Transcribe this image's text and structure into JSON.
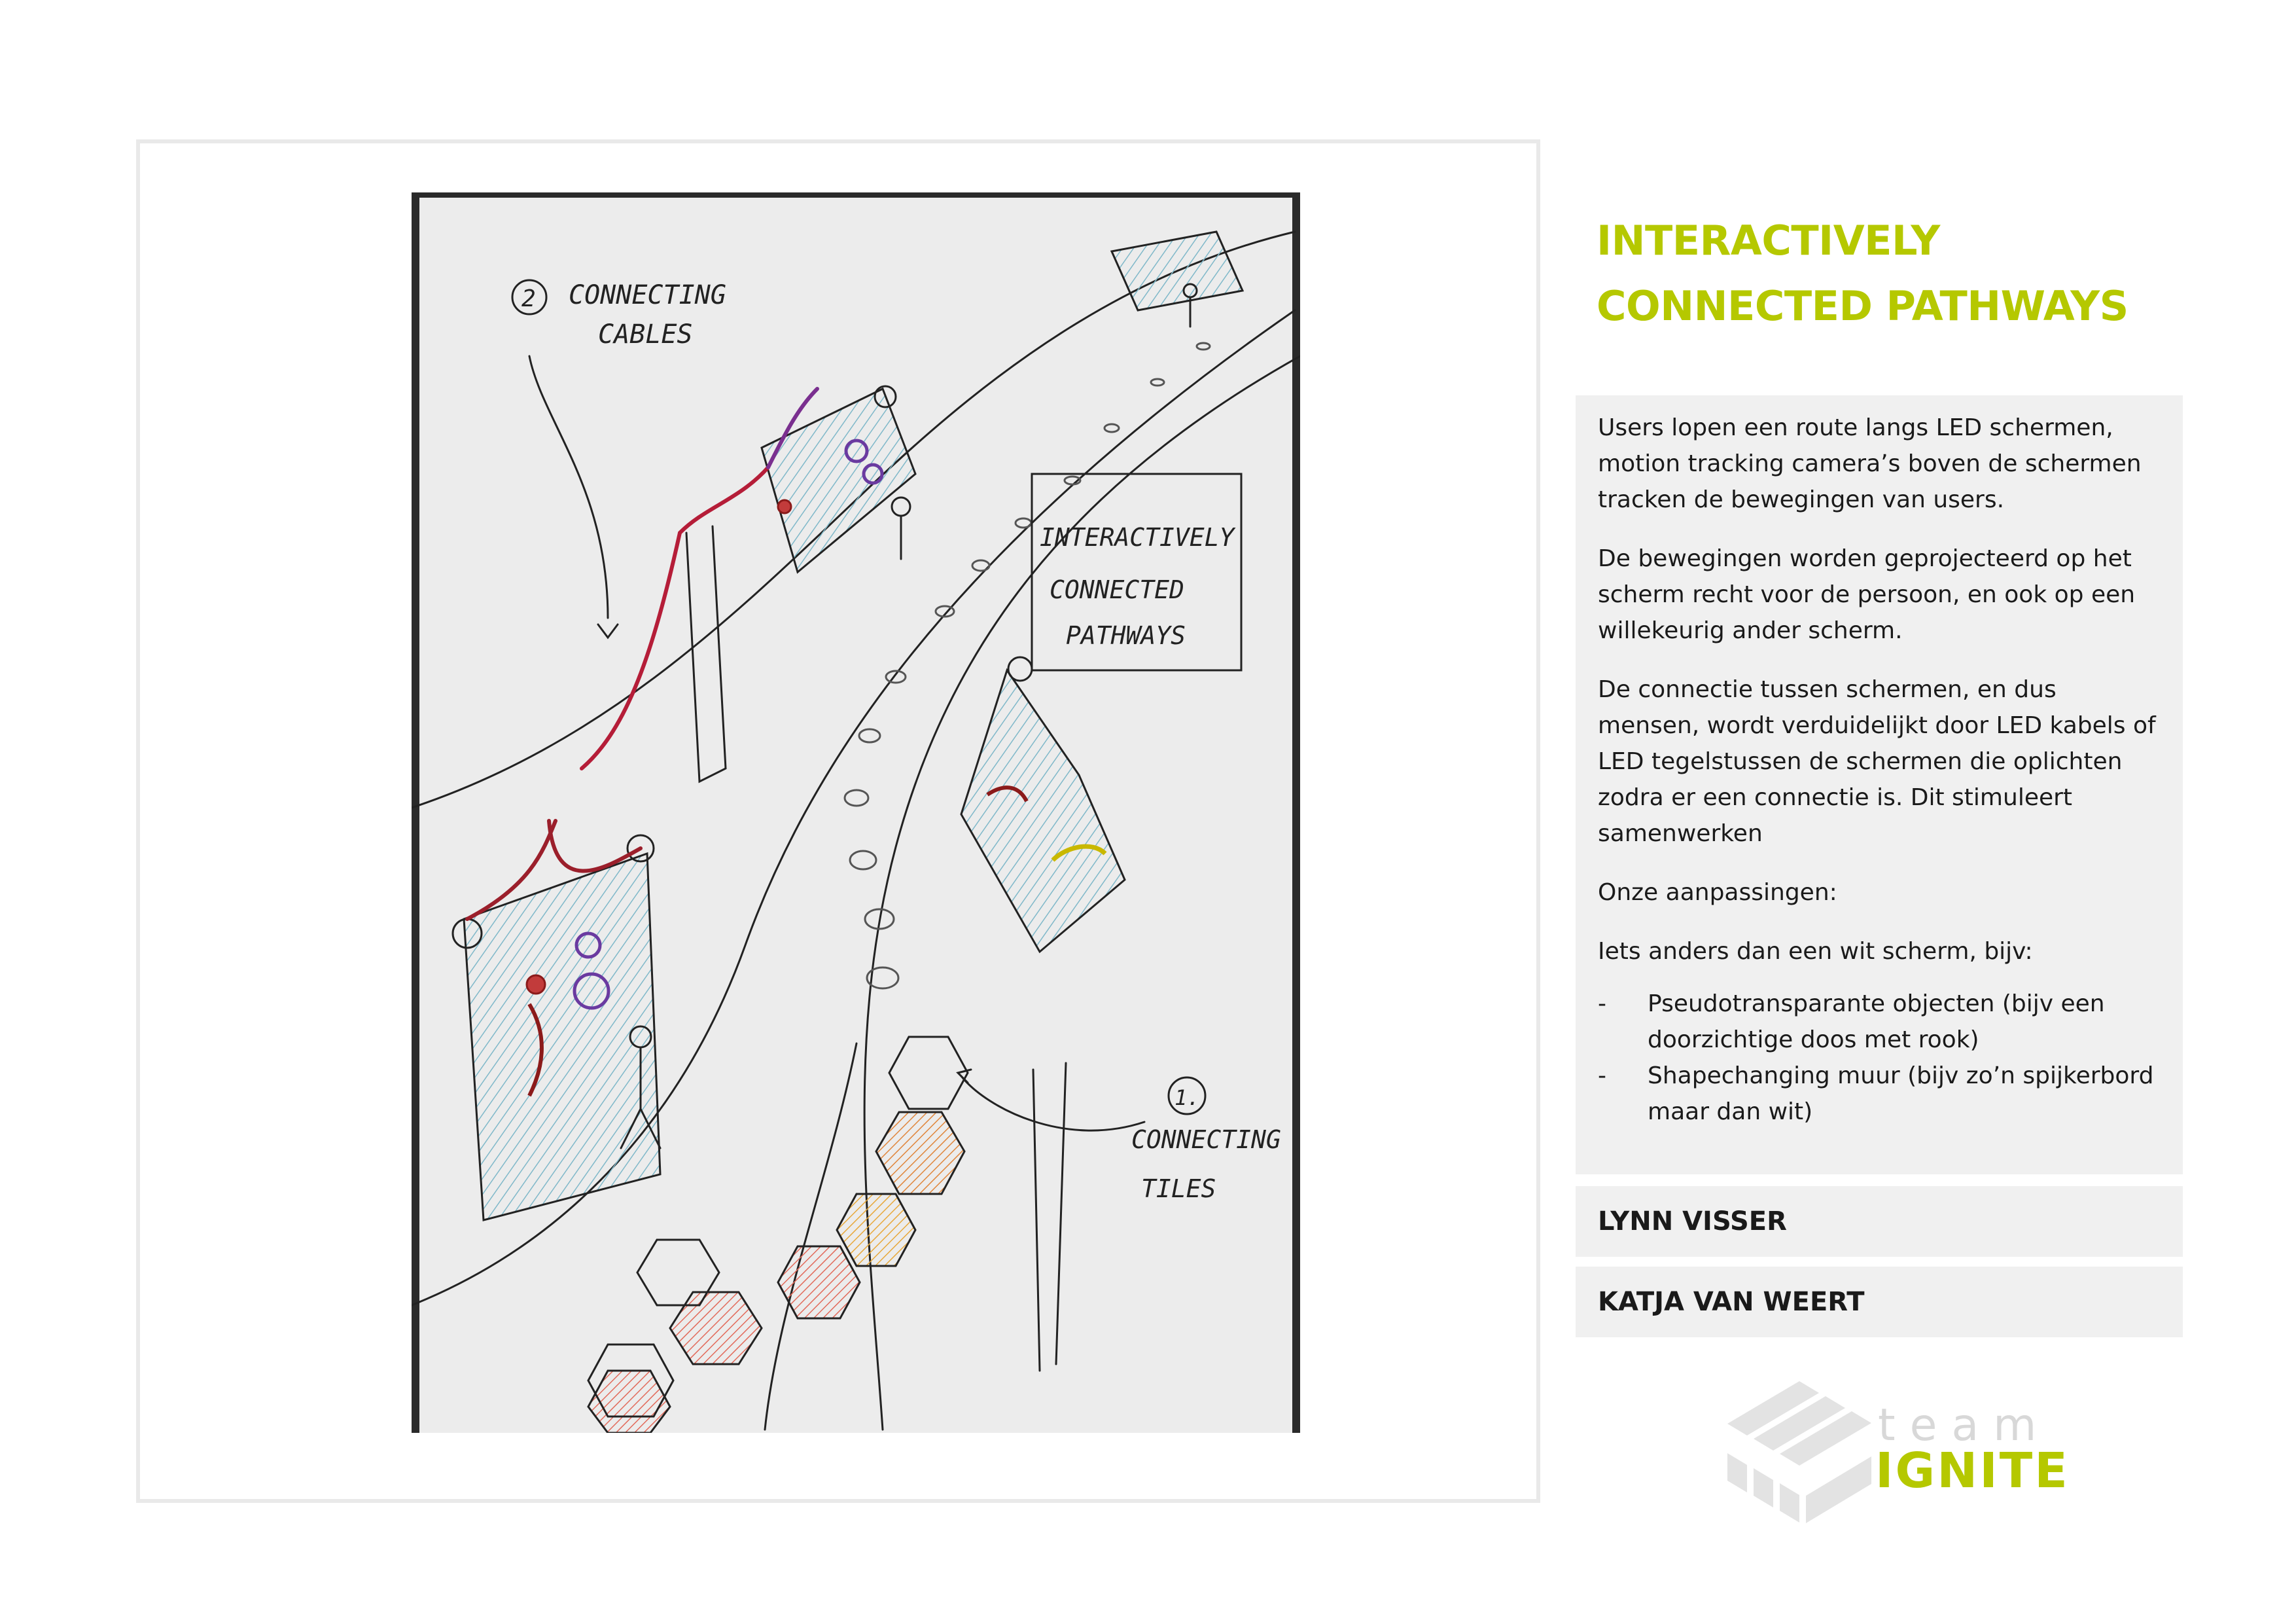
{
  "sketch": {
    "label_cables_number": "2",
    "label_cables_line1": "CONNECTING",
    "label_cables_line2": "CABLES",
    "label_title_line1": "INTERACTIVELY",
    "label_title_line2": "CONNECTED",
    "label_title_line3": "PATHWAYS",
    "label_tiles_number": "1.",
    "label_tiles_line1": "CONNECTING",
    "label_tiles_line2": "TILES"
  },
  "title": {
    "line1": "INTERACTIVELY",
    "line2": "CONNECTED PATHWAYS"
  },
  "description": {
    "p1": "Users lopen een route langs LED schermen, motion tracking camera’s boven de schermen tracken de bewegingen van users.",
    "p2": "De bewegingen worden geprojecteerd op het scherm recht voor de persoon, en ook op een willekeurig ander scherm.",
    "p3": "De connectie tussen schermen, en dus mensen, wordt verduidelijkt door LED kabels of LED tegelstussen de schermen die oplichten zodra er een connectie is. Dit stimuleert samenwerken",
    "p4": "Onze aanpassingen:",
    "p5": "Iets anders dan een wit scherm, bijv:",
    "bullets": [
      "Pseudotransparante objecten (bijv een doorzichtige doos met rook)",
      "Shapechanging muur (bijv zo’n spijkerbord maar dan wit)"
    ],
    "bullet_marker": "-"
  },
  "authors": [
    "LYNN VISSER",
    "KATJA VAN WEERT"
  ],
  "logo": {
    "team": "team",
    "brand": "IGNITE"
  },
  "colors": {
    "accent": "#b5c800",
    "panel": "#f0f0f0",
    "frame": "#e9e9e9"
  }
}
